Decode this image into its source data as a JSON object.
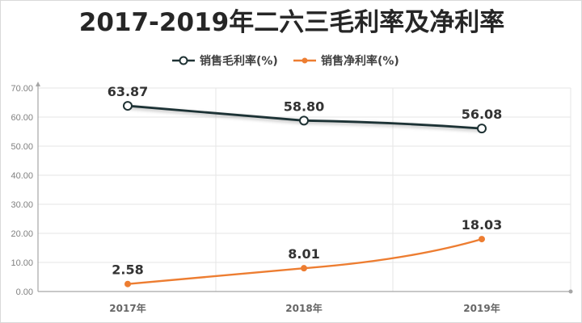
{
  "chart_data": {
    "type": "line",
    "title": "2017-2019年二六三毛利率及净利率",
    "categories": [
      "2017年",
      "2018年",
      "2019年"
    ],
    "ylim": [
      0,
      70
    ],
    "yticks": [
      "0.00",
      "10.00",
      "20.00",
      "30.00",
      "40.00",
      "50.00",
      "60.00",
      "70.00"
    ],
    "grid": true,
    "legend_position": "top",
    "series": [
      {
        "name": "销售毛利率(%)",
        "values": [
          63.87,
          58.8,
          56.08
        ],
        "labels": [
          "63.87",
          "58.80",
          "56.08"
        ],
        "color": "#1f3234",
        "marker": "hollow-circle"
      },
      {
        "name": "销售净利率(%)",
        "values": [
          2.58,
          8.01,
          18.03
        ],
        "labels": [
          "2.58",
          "8.01",
          "18.03"
        ],
        "color": "#ed7d31",
        "marker": "filled-circle"
      }
    ]
  }
}
